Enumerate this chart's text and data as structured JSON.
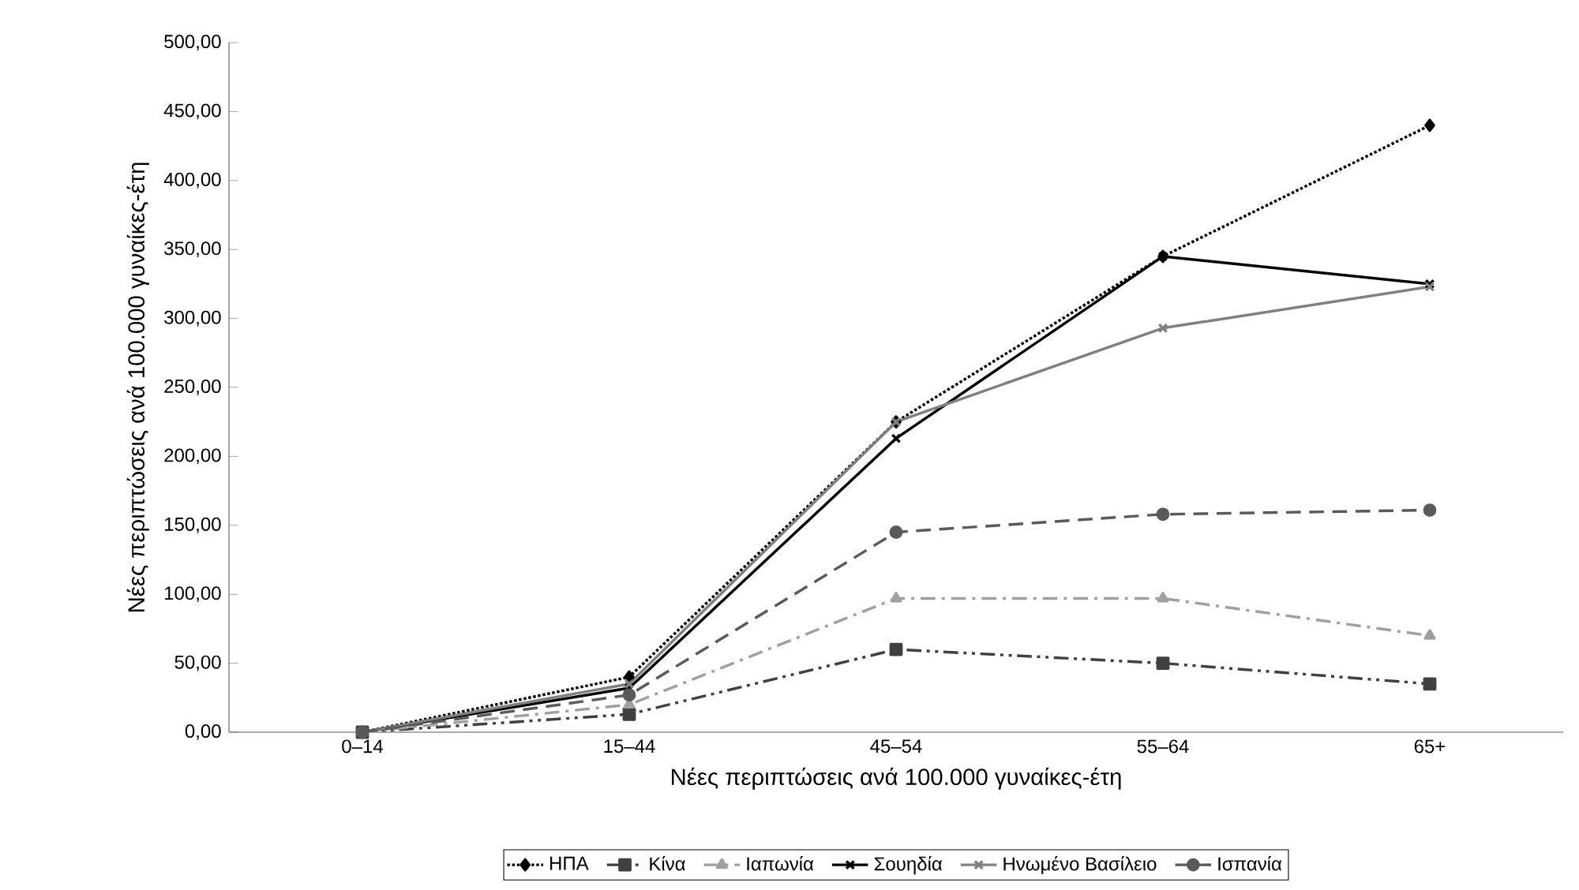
{
  "chart_data": {
    "type": "line",
    "xlabel": "Νέες περιπτώσεις ανά 100.000 γυναίκες-έτη",
    "ylabel": "Νέες περιπτώσεις ανά 100.000 γυναίκες-έτη",
    "categories": [
      "0–14",
      "15–44",
      "45–54",
      "55–64",
      "65+"
    ],
    "ylim": [
      0,
      500
    ],
    "yticks": [
      {
        "value": 0,
        "label": "0,00"
      },
      {
        "value": 50,
        "label": "50,00"
      },
      {
        "value": 100,
        "label": "100,00"
      },
      {
        "value": 150,
        "label": "150,00"
      },
      {
        "value": 200,
        "label": "200,00"
      },
      {
        "value": 250,
        "label": "250,00"
      },
      {
        "value": 300,
        "label": "300,00"
      },
      {
        "value": 350,
        "label": "350,00"
      },
      {
        "value": 400,
        "label": "400,00"
      },
      {
        "value": 450,
        "label": "450,00"
      },
      {
        "value": 500,
        "label": "500,00"
      }
    ],
    "grid": false,
    "legend": "bottom",
    "series": [
      {
        "name": "ΗΠΑ",
        "color": "#000000",
        "marker": "diamond",
        "line_style": "dotted",
        "values": [
          0,
          40,
          225,
          345,
          440
        ]
      },
      {
        "name": "Κίνα",
        "color": "#404040",
        "marker": "square",
        "line_style": "dashdotdot",
        "values": [
          0,
          13,
          60,
          50,
          35
        ]
      },
      {
        "name": "Ιαπωνία",
        "color": "#a0a0a0",
        "marker": "triangle",
        "line_style": "dashdot",
        "values": [
          0,
          20,
          97,
          97,
          70
        ]
      },
      {
        "name": "Σουηδία",
        "color": "#000000",
        "marker": "cross",
        "line_style": "solid",
        "values": [
          0,
          32,
          213,
          345,
          325
        ]
      },
      {
        "name": "Ηνωμένο Βασίλειο",
        "color": "#808080",
        "marker": "cross",
        "line_style": "solid",
        "values": [
          0,
          35,
          225,
          293,
          323
        ]
      },
      {
        "name": "Ισπανία",
        "color": "#5a5a5a",
        "marker": "circle",
        "line_style": "dashed",
        "values": [
          0,
          27,
          145,
          158,
          161
        ]
      }
    ]
  }
}
